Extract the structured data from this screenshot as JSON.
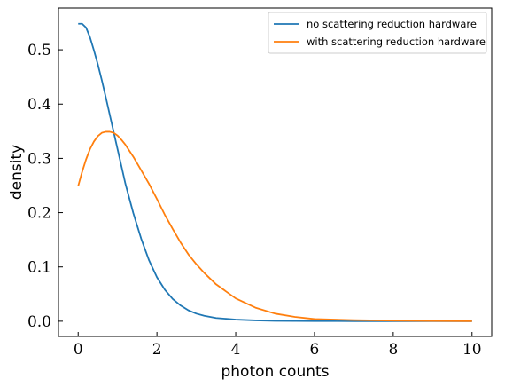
{
  "chart_data": {
    "type": "line",
    "title": "",
    "xlabel": "photon counts",
    "ylabel": "density",
    "xlim": [
      -0.5,
      10.5
    ],
    "ylim": [
      -0.028,
      0.577
    ],
    "xticks": [
      0,
      2,
      4,
      6,
      8,
      10
    ],
    "yticks": [
      0.0,
      0.1,
      0.2,
      0.3,
      0.4,
      0.5
    ],
    "xtick_labels": [
      "0",
      "2",
      "4",
      "6",
      "8",
      "10"
    ],
    "ytick_labels": [
      "0.0",
      "0.1",
      "0.2",
      "0.3",
      "0.4",
      "0.5"
    ],
    "grid": false,
    "legend_position": "top-right",
    "series": [
      {
        "name": "no scattering reduction hardware",
        "color": "#1f77b4",
        "x": [
          0.0,
          0.1,
          0.2,
          0.3,
          0.4,
          0.5,
          0.6,
          0.7,
          0.8,
          0.9,
          1.0,
          1.1,
          1.2,
          1.4,
          1.6,
          1.8,
          2.0,
          2.2,
          2.4,
          2.6,
          2.8,
          3.0,
          3.2,
          3.5,
          4.0,
          4.5,
          5.0,
          6.0,
          7.0,
          8.0,
          9.0,
          10.0
        ],
        "y": [
          0.548,
          0.548,
          0.541,
          0.523,
          0.499,
          0.473,
          0.444,
          0.413,
          0.381,
          0.349,
          0.317,
          0.285,
          0.253,
          0.199,
          0.152,
          0.112,
          0.081,
          0.058,
          0.041,
          0.029,
          0.02,
          0.014,
          0.01,
          0.006,
          0.003,
          0.0015,
          0.0007,
          0.0002,
          0.0001,
          0.0,
          0.0,
          0.0
        ]
      },
      {
        "name": "with scattering reduction hardware",
        "color": "#ff7f0e",
        "x": [
          0.0,
          0.1,
          0.2,
          0.3,
          0.4,
          0.5,
          0.6,
          0.7,
          0.8,
          0.9,
          1.0,
          1.1,
          1.2,
          1.4,
          1.6,
          1.8,
          2.0,
          2.2,
          2.4,
          2.6,
          2.8,
          3.0,
          3.2,
          3.5,
          4.0,
          4.5,
          5.0,
          5.5,
          6.0,
          7.0,
          8.0,
          9.0,
          10.0
        ],
        "y": [
          0.249,
          0.275,
          0.298,
          0.317,
          0.331,
          0.341,
          0.347,
          0.349,
          0.349,
          0.347,
          0.342,
          0.334,
          0.325,
          0.303,
          0.278,
          0.253,
          0.225,
          0.196,
          0.17,
          0.145,
          0.123,
          0.105,
          0.089,
          0.068,
          0.042,
          0.025,
          0.014,
          0.008,
          0.004,
          0.002,
          0.001,
          0.0005,
          0.0
        ]
      }
    ]
  }
}
